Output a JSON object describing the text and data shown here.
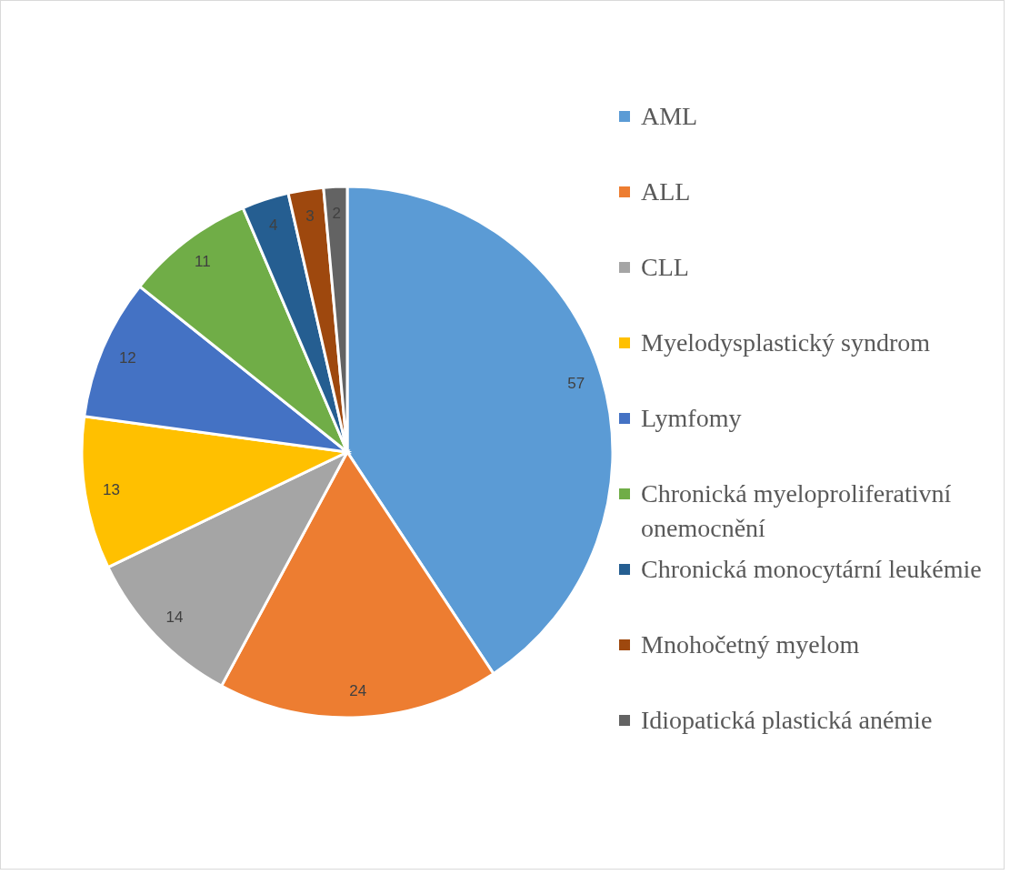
{
  "chart_data": {
    "type": "pie",
    "categories": [
      "AML",
      "ALL",
      "CLL",
      "Myelodysplastický syndrom",
      "Lymfomy",
      "Chronická myeloproliferativní onemocnění",
      "Chronická monocytární leukémie",
      "Mnohočetný myelom",
      "Idiopatická plastická anémie"
    ],
    "values": [
      57,
      24,
      14,
      13,
      12,
      11,
      4,
      3,
      2
    ],
    "colors": [
      "#5b9bd5",
      "#ed7d31",
      "#a5a5a5",
      "#ffc000",
      "#4472c4",
      "#70ad47",
      "#255e91",
      "#9e480e",
      "#636363"
    ],
    "data_labels": true,
    "legend": "right"
  }
}
